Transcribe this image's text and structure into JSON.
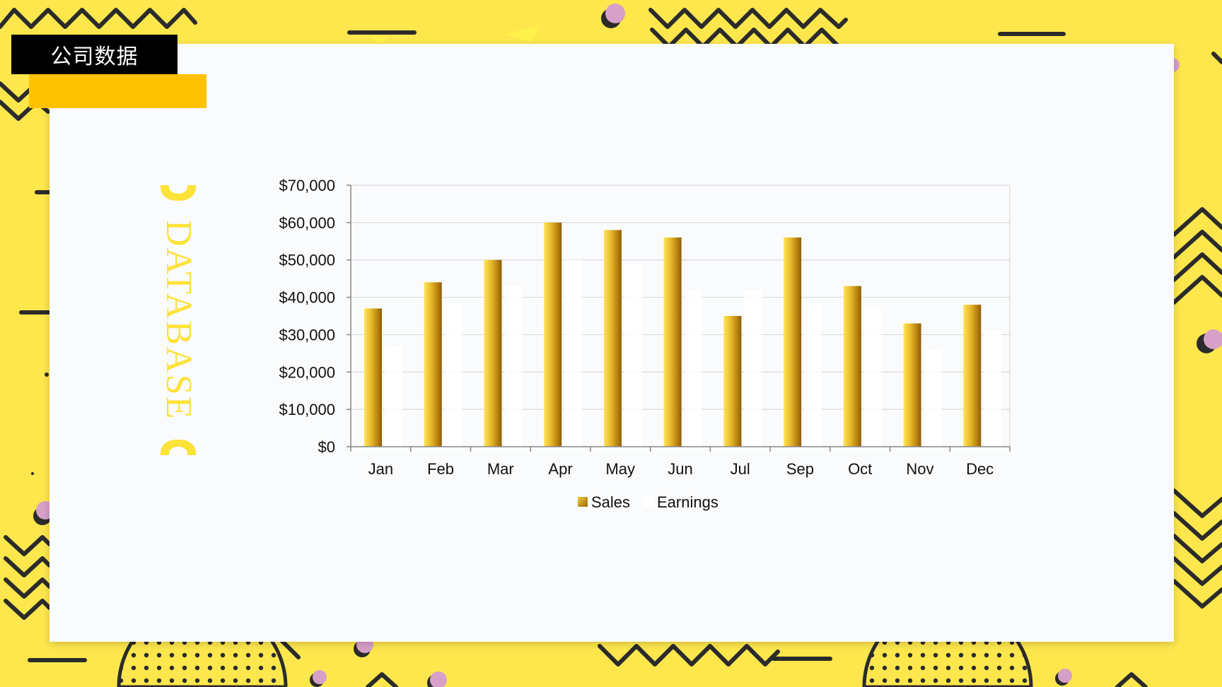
{
  "header": {
    "title": "公司数据"
  },
  "side_label": "DATABASE",
  "chart_data": {
    "type": "bar",
    "title": "",
    "xlabel": "",
    "ylabel": "",
    "categories": [
      "Jan",
      "Feb",
      "Mar",
      "Apr",
      "May",
      "Jun",
      "Jul",
      "Sep",
      "Oct",
      "Nov",
      "Dec"
    ],
    "series": [
      {
        "name": "Sales",
        "values": [
          37000,
          44000,
          50000,
          60000,
          58000,
          56000,
          35000,
          56000,
          43000,
          33000,
          38000
        ],
        "color": "#c8960a"
      },
      {
        "name": "Earnings",
        "values": [
          27000,
          38000,
          43000,
          50000,
          49000,
          42000,
          42000,
          38000,
          37000,
          26000,
          31000
        ],
        "color": "#ffffff"
      }
    ],
    "ylim": [
      0,
      70000
    ],
    "yticks": [
      "$0",
      "$10,000",
      "$20,000",
      "$30,000",
      "$40,000",
      "$50,000",
      "$60,000",
      "$70,000"
    ],
    "grid": true,
    "legend": "bottom"
  },
  "colors": {
    "background": "#fde74c",
    "accent": "#ffc200",
    "card": "#fafbfd",
    "dark": "#2b2b2b",
    "dot": "#d6a0c8"
  }
}
